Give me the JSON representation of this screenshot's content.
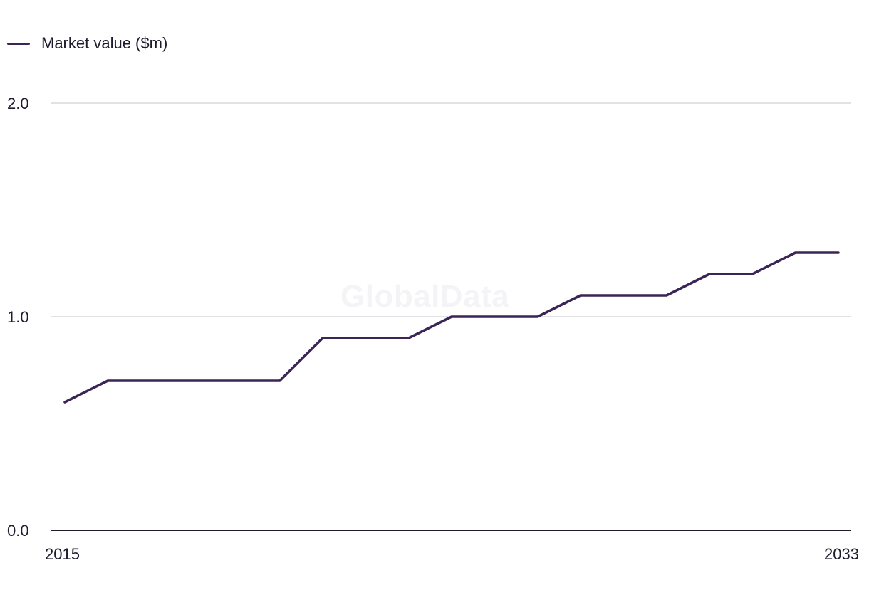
{
  "watermark": "GlobalData",
  "chart_data": {
    "type": "line",
    "title": "",
    "xlabel": "",
    "ylabel": "",
    "x": [
      2015,
      2016,
      2017,
      2018,
      2019,
      2020,
      2021,
      2022,
      2023,
      2024,
      2025,
      2026,
      2027,
      2028,
      2029,
      2030,
      2031,
      2032,
      2033
    ],
    "x_tick_labels": [
      "2015",
      "2033"
    ],
    "y_ticks": [
      0.0,
      1.0,
      2.0
    ],
    "y_tick_labels": [
      "0.0",
      "1.0",
      "2.0"
    ],
    "ylim": [
      0,
      2
    ],
    "grid": true,
    "legend_position": "top-left",
    "series": [
      {
        "name": "Market value ($m)",
        "color": "#3a2556",
        "values": [
          0.6,
          0.7,
          0.7,
          0.7,
          0.7,
          0.7,
          0.9,
          0.9,
          0.9,
          1.0,
          1.0,
          1.0,
          1.1,
          1.1,
          1.1,
          1.2,
          1.2,
          1.3,
          1.3
        ]
      }
    ],
    "colors": {
      "line": "#3a2556",
      "grid": "#d9d9dd",
      "axis": "#1f1a2e"
    }
  }
}
